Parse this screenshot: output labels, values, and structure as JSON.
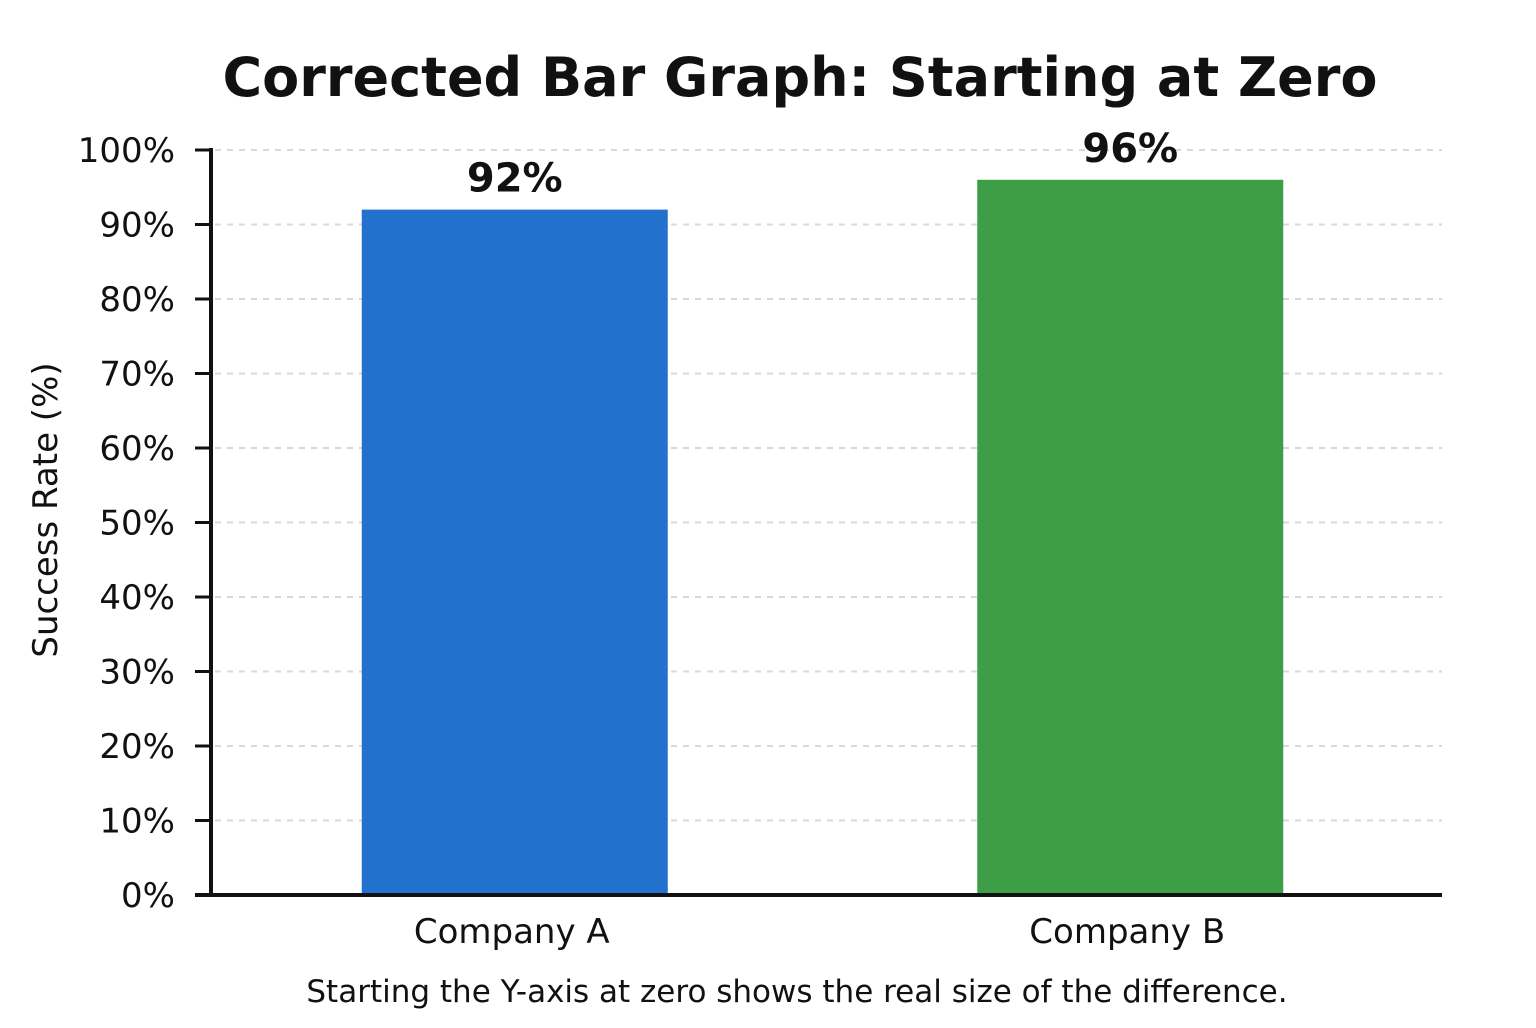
{
  "chart_data": {
    "type": "bar",
    "title": "Corrected Bar Graph: Starting at Zero",
    "caption": "Starting the Y-axis at zero shows the real size of the difference.",
    "xlabel": "",
    "ylabel": "Success Rate (%)",
    "ylim": [
      0,
      100
    ],
    "yticks": [
      0,
      10,
      20,
      30,
      40,
      50,
      60,
      70,
      80,
      90,
      100
    ],
    "ytick_labels": [
      "0%",
      "10%",
      "20%",
      "30%",
      "40%",
      "50%",
      "60%",
      "70%",
      "80%",
      "90%",
      "100%"
    ],
    "grid": true,
    "categories": [
      "Company A",
      "Company B"
    ],
    "values": [
      92,
      96
    ],
    "value_labels": [
      "92%",
      "96%"
    ],
    "colors": [
      "#2271CC",
      "#3E9E47"
    ]
  }
}
